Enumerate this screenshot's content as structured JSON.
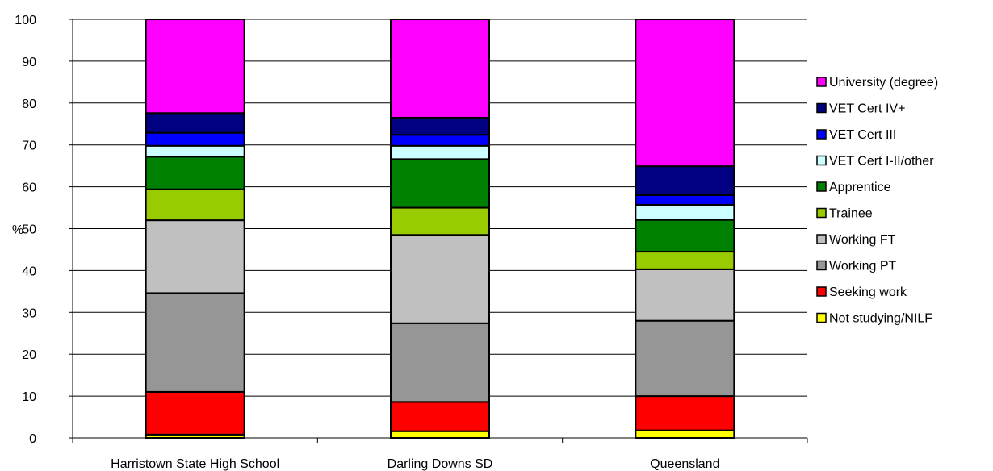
{
  "chart_data": {
    "type": "bar",
    "stacked": true,
    "title": "",
    "xlabel": "",
    "ylabel": "%",
    "ylim": [
      0,
      100
    ],
    "yticks": [
      0,
      10,
      20,
      30,
      40,
      50,
      60,
      70,
      80,
      90,
      100
    ],
    "grid": true,
    "legend_position": "right",
    "categories": [
      "Harristown State High School",
      "Darling Downs SD",
      "Queensland"
    ],
    "series": [
      {
        "name": "Not studying/NILF",
        "color": "#FFFF00",
        "values": [
          0.8,
          1.6,
          1.8
        ]
      },
      {
        "name": "Seeking work",
        "color": "#FF0000",
        "values": [
          10.2,
          7.0,
          8.2
        ]
      },
      {
        "name": "Working PT",
        "color": "#969696",
        "values": [
          23.6,
          18.8,
          18.0
        ]
      },
      {
        "name": "Working FT",
        "color": "#C0C0C0",
        "values": [
          17.4,
          21.1,
          12.3
        ]
      },
      {
        "name": "Trainee",
        "color": "#99CC00",
        "values": [
          7.4,
          6.5,
          4.2
        ]
      },
      {
        "name": "Apprentice",
        "color": "#008000",
        "values": [
          7.8,
          11.6,
          7.6
        ]
      },
      {
        "name": "VET Cert I-II/other",
        "color": "#CCFFFF",
        "values": [
          2.6,
          3.2,
          3.6
        ]
      },
      {
        "name": "VET Cert III",
        "color": "#0000FF",
        "values": [
          3.1,
          2.6,
          2.3
        ]
      },
      {
        "name": "VET Cert IV+",
        "color": "#000080",
        "values": [
          4.7,
          4.1,
          6.9
        ]
      },
      {
        "name": "University (degree)",
        "color": "#FF00FF",
        "values": [
          22.4,
          23.5,
          35.1
        ]
      }
    ]
  }
}
